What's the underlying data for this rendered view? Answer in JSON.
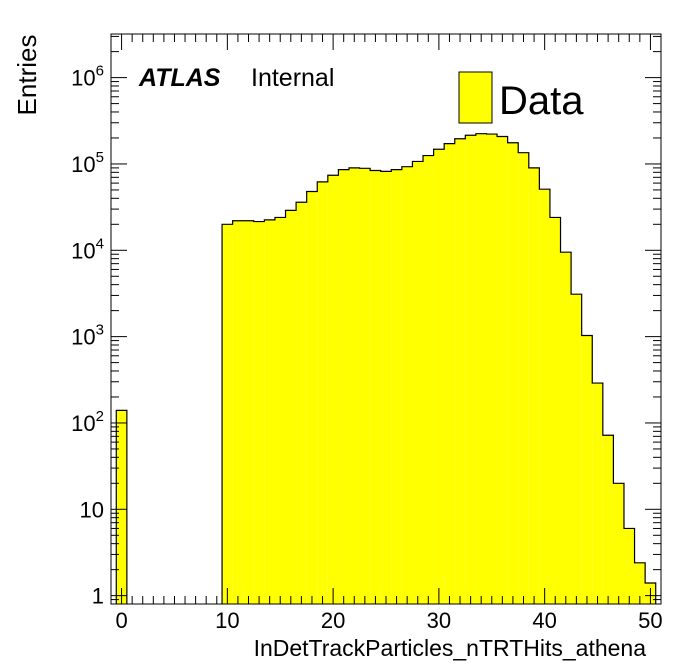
{
  "chart_data": {
    "type": "bar",
    "xlabel": "InDetTrackParticles_nTRTHits_athena",
    "ylabel": "Entries",
    "log_y": true,
    "xlim": [
      -1,
      51
    ],
    "ylim": [
      0.8,
      3200000
    ],
    "bin_width": 1,
    "x_ticks": [
      0,
      10,
      20,
      30,
      40,
      50
    ],
    "y_ticks": [
      {
        "value": 1,
        "base": "1",
        "exp": ""
      },
      {
        "value": 10,
        "base": "10",
        "exp": ""
      },
      {
        "value": 100,
        "base": "10",
        "exp": "2"
      },
      {
        "value": 1000,
        "base": "10",
        "exp": "3"
      },
      {
        "value": 10000,
        "base": "10",
        "exp": "4"
      },
      {
        "value": 100000,
        "base": "10",
        "exp": "5"
      },
      {
        "value": 1000000,
        "base": "10",
        "exp": "6"
      }
    ],
    "series": [
      {
        "name": "Data",
        "color": "#ffff00",
        "bins": [
          {
            "x": 0,
            "y": 140
          },
          {
            "x": 10,
            "y": 20000
          },
          {
            "x": 11,
            "y": 22000
          },
          {
            "x": 12,
            "y": 22000
          },
          {
            "x": 13,
            "y": 21500
          },
          {
            "x": 14,
            "y": 22500
          },
          {
            "x": 15,
            "y": 24000
          },
          {
            "x": 16,
            "y": 29000
          },
          {
            "x": 17,
            "y": 36000
          },
          {
            "x": 18,
            "y": 48000
          },
          {
            "x": 19,
            "y": 62000
          },
          {
            "x": 20,
            "y": 74000
          },
          {
            "x": 21,
            "y": 86000
          },
          {
            "x": 22,
            "y": 90000
          },
          {
            "x": 23,
            "y": 89000
          },
          {
            "x": 24,
            "y": 84000
          },
          {
            "x": 25,
            "y": 82000
          },
          {
            "x": 26,
            "y": 86000
          },
          {
            "x": 27,
            "y": 93000
          },
          {
            "x": 28,
            "y": 107000
          },
          {
            "x": 29,
            "y": 125000
          },
          {
            "x": 30,
            "y": 148000
          },
          {
            "x": 31,
            "y": 172000
          },
          {
            "x": 32,
            "y": 196000
          },
          {
            "x": 33,
            "y": 215000
          },
          {
            "x": 34,
            "y": 224000
          },
          {
            "x": 35,
            "y": 222000
          },
          {
            "x": 36,
            "y": 208000
          },
          {
            "x": 37,
            "y": 176000
          },
          {
            "x": 38,
            "y": 135000
          },
          {
            "x": 39,
            "y": 90000
          },
          {
            "x": 40,
            "y": 51000
          },
          {
            "x": 41,
            "y": 24000
          },
          {
            "x": 42,
            "y": 9500
          },
          {
            "x": 43,
            "y": 3100
          },
          {
            "x": 44,
            "y": 1030
          },
          {
            "x": 45,
            "y": 290
          },
          {
            "x": 46,
            "y": 72
          },
          {
            "x": 47,
            "y": 20
          },
          {
            "x": 48,
            "y": 6
          },
          {
            "x": 49,
            "y": 2.4
          },
          {
            "x": 50,
            "y": 1.4
          }
        ]
      }
    ],
    "legend": {
      "position": "top-right",
      "entries": [
        "Data"
      ]
    },
    "annotation": {
      "bold": "ATLAS",
      "text": "Internal"
    }
  }
}
